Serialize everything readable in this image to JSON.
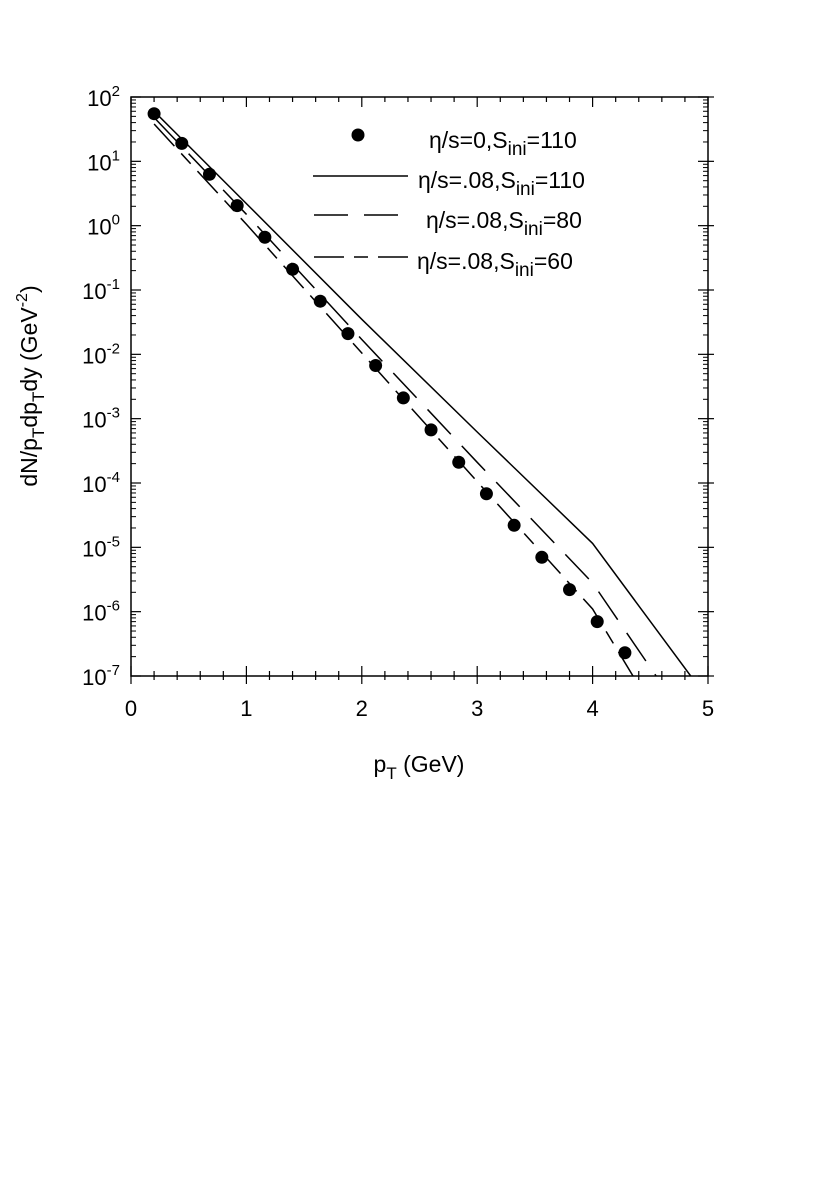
{
  "chart_data": {
    "type": "line",
    "title": "",
    "xlabel": {
      "main": "p",
      "sub": "T",
      "tail": " (GeV)"
    },
    "ylabel": {
      "t1": "dN/p",
      "s1": "T",
      "t2": "dp",
      "s2": "T",
      "t3": "dy (GeV",
      "sup": "-2",
      "t4": ")"
    },
    "xlim": [
      0,
      5
    ],
    "ylim_log10": [
      -7,
      2
    ],
    "yscale": "log",
    "grid": false,
    "legend_position": "top-right",
    "x_ticks": [
      "0",
      "1",
      "2",
      "3",
      "4",
      "5"
    ],
    "y_ticks": [
      {
        "base": "10",
        "exp": "2"
      },
      {
        "base": "10",
        "exp": "1"
      },
      {
        "base": "10",
        "exp": "0"
      },
      {
        "base": "10",
        "exp": "-1"
      },
      {
        "base": "10",
        "exp": "-2"
      },
      {
        "base": "10",
        "exp": "-3"
      },
      {
        "base": "10",
        "exp": "-4"
      },
      {
        "base": "10",
        "exp": "-5"
      },
      {
        "base": "10",
        "exp": "-6"
      },
      {
        "base": "10",
        "exp": "-7"
      }
    ],
    "series": [
      {
        "name": "η/s=0,Sini=110",
        "legend": {
          "pre": "η/s=0,S",
          "sub": "ini",
          "post": "=110"
        },
        "style": "markers",
        "x": [
          0.2,
          0.44,
          0.68,
          0.92,
          1.16,
          1.4,
          1.64,
          1.88,
          2.12,
          2.36,
          2.6,
          2.84,
          3.08,
          3.32,
          3.56,
          3.8,
          4.04,
          4.28
        ],
        "y": [
          55,
          19,
          6.3,
          2.05,
          0.66,
          0.21,
          0.067,
          0.021,
          0.0067,
          0.0021,
          0.00067,
          0.00021,
          6.8e-05,
          2.2e-05,
          7e-06,
          2.2e-06,
          7e-07,
          2.3e-07
        ]
      },
      {
        "name": "η/s=.08,Sini=110",
        "legend": {
          "pre": "η/s=.08,S",
          "sub": "ini",
          "post": "=110"
        },
        "style": "solid",
        "x": [
          0.2,
          1.0,
          2.0,
          3.0,
          4.0,
          4.85
        ],
        "y": [
          60,
          2.2,
          0.035,
          0.00062,
          1.15e-05,
          1e-07
        ]
      },
      {
        "name": "η/s=.08,Sini=80",
        "legend": {
          "pre": "η/s=.08,S",
          "sub": "ini",
          "post": "=80"
        },
        "style": "long-dash",
        "x": [
          0.2,
          1.0,
          2.0,
          3.0,
          4.0,
          4.55
        ],
        "y": [
          48,
          1.5,
          0.017,
          0.00021,
          2.8e-06,
          1e-07
        ]
      },
      {
        "name": "η/s=.08,Sini=60",
        "legend": {
          "pre": "η/s=.08,S",
          "sub": "ini",
          "post": "=60"
        },
        "style": "dash-dot",
        "x": [
          0.2,
          1.0,
          2.0,
          3.0,
          4.0,
          4.35
        ],
        "y": [
          38,
          1.05,
          0.0105,
          0.000105,
          1.1e-06,
          1e-07
        ]
      }
    ]
  }
}
